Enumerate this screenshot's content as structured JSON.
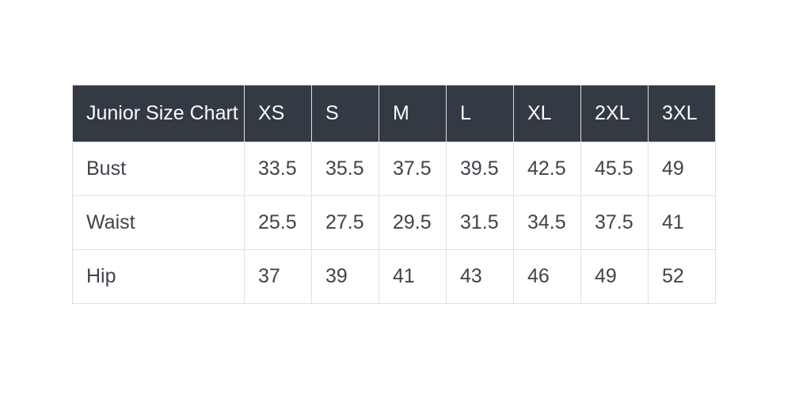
{
  "theme": {
    "page_bg": "#ffffff",
    "header_bg": "#343a44",
    "header_text": "#fcfcfc",
    "body_text": "#3f444b",
    "border": "#e0e0e0"
  },
  "table": {
    "title": "Junior Size Chart",
    "columns": [
      "XS",
      "S",
      "M",
      "L",
      "XL",
      "2XL",
      "3XL"
    ],
    "rows": [
      {
        "label": "Bust",
        "values": [
          "33.5",
          "35.5",
          "37.5",
          "39.5",
          "42.5",
          "45.5",
          "49"
        ]
      },
      {
        "label": "Waist",
        "values": [
          "25.5",
          "27.5",
          "29.5",
          "31.5",
          "34.5",
          "37.5",
          "41"
        ]
      },
      {
        "label": "Hip",
        "values": [
          "37",
          "39",
          "41",
          "43",
          "46",
          "49",
          "52"
        ]
      }
    ]
  },
  "chart_data": {
    "type": "table",
    "title": "Junior Size Chart",
    "columns": [
      "XS",
      "S",
      "M",
      "L",
      "XL",
      "2XL",
      "3XL"
    ],
    "row_labels": [
      "Bust",
      "Waist",
      "Hip"
    ],
    "series": [
      {
        "name": "Bust",
        "values": [
          33.5,
          35.5,
          37.5,
          39.5,
          42.5,
          45.5,
          49
        ]
      },
      {
        "name": "Waist",
        "values": [
          25.5,
          27.5,
          29.5,
          31.5,
          34.5,
          37.5,
          41
        ]
      },
      {
        "name": "Hip",
        "values": [
          37,
          39,
          41,
          43,
          46,
          49,
          52
        ]
      }
    ],
    "layout": {
      "header_position": "top",
      "grid": true,
      "units_visible": false
    }
  }
}
